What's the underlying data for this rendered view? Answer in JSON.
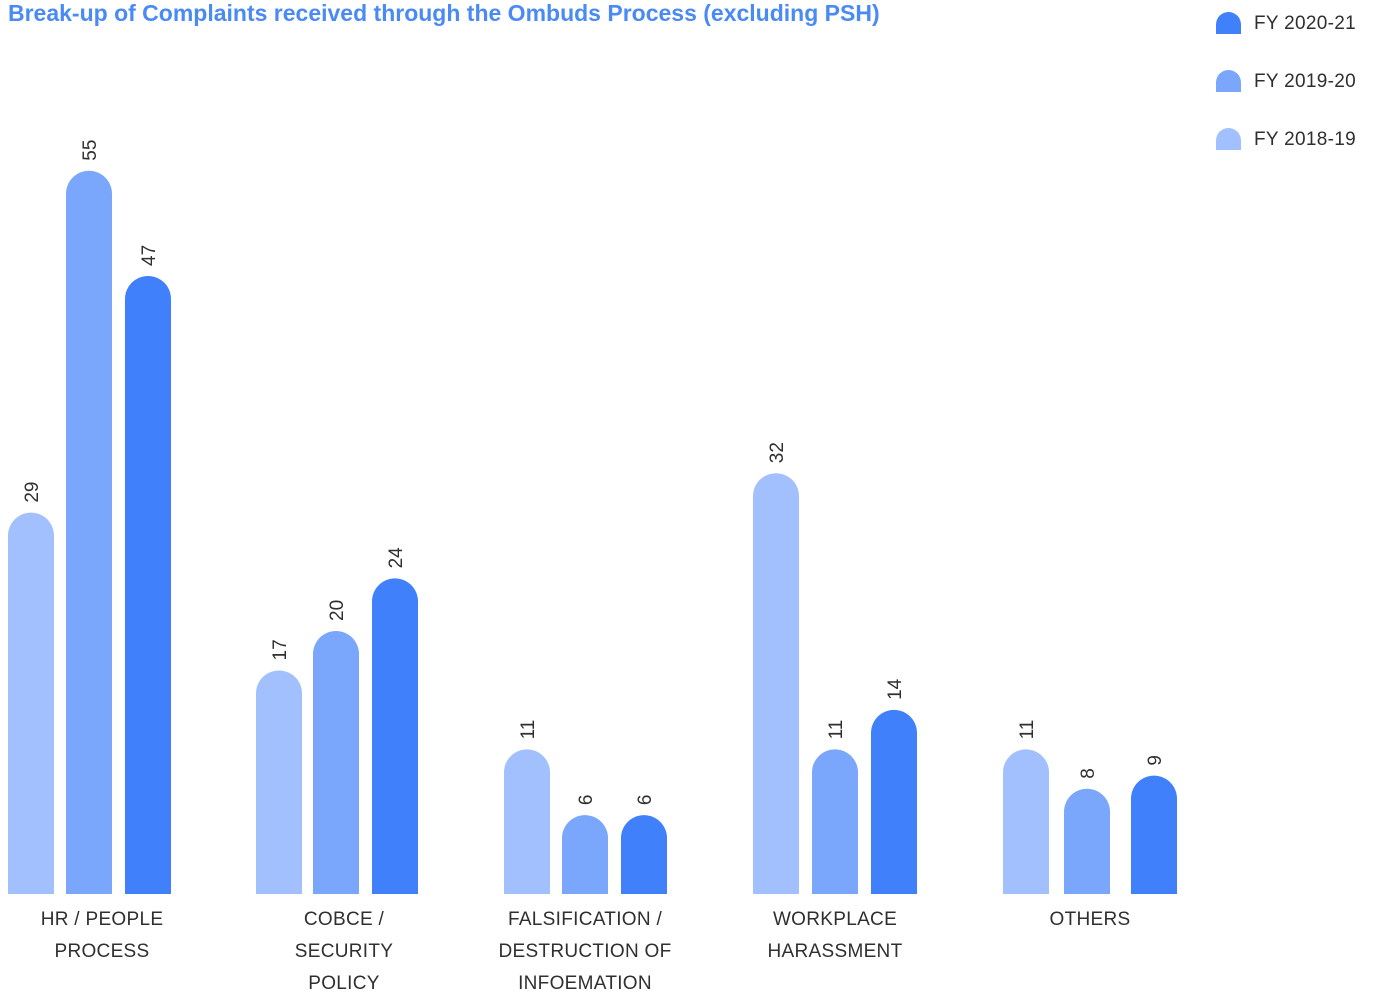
{
  "chart_data": {
    "type": "bar",
    "title": "Break-up of Complaints received through the Ombuds Process (excluding PSH)",
    "categories": [
      [
        "HR / PEOPLE",
        "PROCESS"
      ],
      [
        "COBCE /",
        "SECURITY",
        "POLICY"
      ],
      [
        "FALSIFICATION /",
        "DESTRUCTION OF",
        "INFOEMATION"
      ],
      [
        "WORKPLACE",
        "HARASSMENT"
      ],
      [
        "OTHERS"
      ]
    ],
    "series": [
      {
        "name": "FY 2018-19",
        "color": "#a2c0fd",
        "values": [
          29,
          17,
          11,
          32,
          11
        ]
      },
      {
        "name": "FY 2019-20",
        "color": "#7aa6fc",
        "values": [
          55,
          20,
          6,
          11,
          8
        ]
      },
      {
        "name": "FY 2020-21",
        "color": "#4080fb",
        "values": [
          47,
          24,
          6,
          14,
          9
        ]
      }
    ],
    "legend_order": [
      "FY 2020-21",
      "FY 2019-20",
      "FY 2018-19"
    ],
    "legend_position": "top-right",
    "xlabel": "",
    "ylabel": "",
    "ylim": [
      0,
      60
    ],
    "grid": false,
    "data_labels": "rotated above bars"
  }
}
